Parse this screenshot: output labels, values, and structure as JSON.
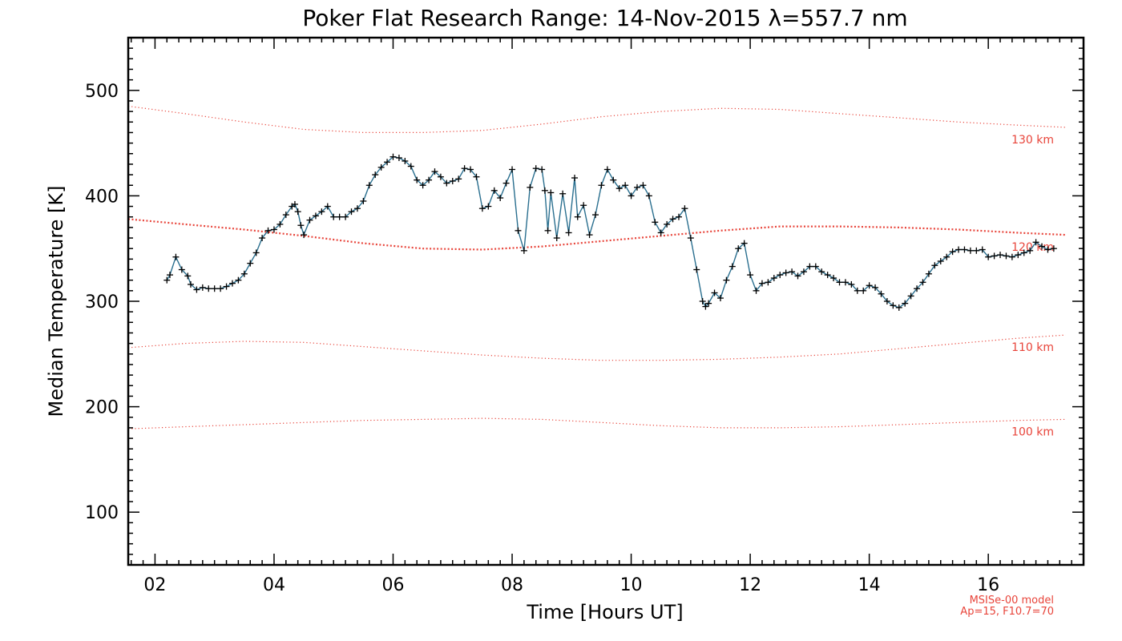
{
  "chart_data": {
    "type": "line",
    "title": "Poker Flat Research Range: 14-Nov-2015 λ=557.7 nm",
    "xlabel": "Time [Hours UT]",
    "ylabel": "Median Temperature [K]",
    "xlim": [
      1.55,
      17.6
    ],
    "ylim": [
      50,
      550
    ],
    "x_ticks": [
      2,
      4,
      6,
      8,
      10,
      12,
      14,
      16
    ],
    "x_tick_labels": [
      "02",
      "04",
      "06",
      "08",
      "10",
      "12",
      "14",
      "16"
    ],
    "y_ticks": [
      100,
      200,
      300,
      400,
      500
    ],
    "y_tick_labels": [
      "100",
      "200",
      "300",
      "400",
      "500"
    ],
    "grid": false,
    "series": [
      {
        "color": "#1f3f5f",
        "marker": "plus",
        "points": [
          [
            2.2,
            320
          ],
          [
            2.25,
            325
          ],
          [
            2.35,
            342
          ],
          [
            2.45,
            330
          ],
          [
            2.55,
            324
          ],
          [
            2.6,
            316
          ],
          [
            2.7,
            311
          ],
          [
            2.8,
            313
          ],
          [
            2.9,
            312
          ],
          [
            3.0,
            312
          ],
          [
            3.1,
            312
          ],
          [
            3.2,
            314
          ],
          [
            3.3,
            317
          ],
          [
            3.4,
            320
          ],
          [
            3.5,
            326
          ],
          [
            3.6,
            336
          ],
          [
            3.7,
            346
          ],
          [
            3.8,
            360
          ],
          [
            3.9,
            367
          ],
          [
            4.0,
            368
          ],
          [
            4.1,
            373
          ],
          [
            4.2,
            382
          ],
          [
            4.3,
            390
          ],
          [
            4.35,
            392
          ],
          [
            4.4,
            385
          ],
          [
            4.45,
            372
          ],
          [
            4.5,
            363
          ],
          [
            4.6,
            377
          ],
          [
            4.7,
            381
          ],
          [
            4.8,
            385
          ],
          [
            4.9,
            390
          ],
          [
            5.0,
            380
          ],
          [
            5.1,
            380
          ],
          [
            5.2,
            380
          ],
          [
            5.3,
            385
          ],
          [
            5.4,
            388
          ],
          [
            5.5,
            395
          ],
          [
            5.6,
            410
          ],
          [
            5.7,
            420
          ],
          [
            5.8,
            427
          ],
          [
            5.9,
            432
          ],
          [
            6.0,
            437
          ],
          [
            6.1,
            436
          ],
          [
            6.2,
            433
          ],
          [
            6.3,
            428
          ],
          [
            6.4,
            415
          ],
          [
            6.5,
            410
          ],
          [
            6.6,
            415
          ],
          [
            6.7,
            423
          ],
          [
            6.8,
            418
          ],
          [
            6.9,
            412
          ],
          [
            7.0,
            414
          ],
          [
            7.1,
            416
          ],
          [
            7.2,
            426
          ],
          [
            7.3,
            425
          ],
          [
            7.4,
            418
          ],
          [
            7.5,
            388
          ],
          [
            7.6,
            390
          ],
          [
            7.7,
            405
          ],
          [
            7.8,
            398
          ],
          [
            7.9,
            412
          ],
          [
            8.0,
            425
          ],
          [
            8.1,
            367
          ],
          [
            8.2,
            348
          ],
          [
            8.3,
            408
          ],
          [
            8.4,
            426
          ],
          [
            8.5,
            425
          ],
          [
            8.55,
            405
          ],
          [
            8.6,
            367
          ],
          [
            8.65,
            403
          ],
          [
            8.75,
            360
          ],
          [
            8.85,
            402
          ],
          [
            8.95,
            365
          ],
          [
            9.05,
            417
          ],
          [
            9.1,
            380
          ],
          [
            9.2,
            391
          ],
          [
            9.3,
            363
          ],
          [
            9.4,
            382
          ],
          [
            9.5,
            410
          ],
          [
            9.6,
            425
          ],
          [
            9.7,
            415
          ],
          [
            9.8,
            407
          ],
          [
            9.9,
            410
          ],
          [
            10.0,
            400
          ],
          [
            10.1,
            408
          ],
          [
            10.2,
            410
          ],
          [
            10.3,
            400
          ],
          [
            10.4,
            375
          ],
          [
            10.5,
            365
          ],
          [
            10.6,
            373
          ],
          [
            10.7,
            378
          ],
          [
            10.8,
            380
          ],
          [
            10.9,
            388
          ],
          [
            11.0,
            360
          ],
          [
            11.1,
            330
          ],
          [
            11.2,
            300
          ],
          [
            11.25,
            295
          ],
          [
            11.3,
            298
          ],
          [
            11.4,
            308
          ],
          [
            11.5,
            303
          ],
          [
            11.6,
            320
          ],
          [
            11.7,
            333
          ],
          [
            11.8,
            350
          ],
          [
            11.9,
            355
          ],
          [
            12.0,
            325
          ],
          [
            12.1,
            310
          ],
          [
            12.2,
            317
          ],
          [
            12.3,
            318
          ],
          [
            12.4,
            322
          ],
          [
            12.5,
            325
          ],
          [
            12.6,
            327
          ],
          [
            12.7,
            328
          ],
          [
            12.8,
            324
          ],
          [
            12.9,
            328
          ],
          [
            13.0,
            333
          ],
          [
            13.1,
            333
          ],
          [
            13.2,
            328
          ],
          [
            13.3,
            325
          ],
          [
            13.4,
            322
          ],
          [
            13.5,
            318
          ],
          [
            13.6,
            318
          ],
          [
            13.7,
            316
          ],
          [
            13.8,
            310
          ],
          [
            13.9,
            310
          ],
          [
            14.0,
            315
          ],
          [
            14.1,
            313
          ],
          [
            14.2,
            307
          ],
          [
            14.3,
            300
          ],
          [
            14.4,
            296
          ],
          [
            14.5,
            294
          ],
          [
            14.6,
            298
          ],
          [
            14.7,
            305
          ],
          [
            14.8,
            312
          ],
          [
            14.9,
            318
          ],
          [
            15.0,
            326
          ],
          [
            15.1,
            334
          ],
          [
            15.2,
            338
          ],
          [
            15.3,
            342
          ],
          [
            15.4,
            347
          ],
          [
            15.5,
            349
          ],
          [
            15.6,
            349
          ],
          [
            15.7,
            348
          ],
          [
            15.8,
            348
          ],
          [
            15.9,
            349
          ],
          [
            16.0,
            342
          ],
          [
            16.1,
            343
          ],
          [
            16.2,
            344
          ],
          [
            16.3,
            343
          ],
          [
            16.4,
            342
          ],
          [
            16.5,
            344
          ],
          [
            16.6,
            346
          ],
          [
            16.7,
            348
          ],
          [
            16.8,
            356
          ],
          [
            16.9,
            352
          ],
          [
            17.0,
            349
          ],
          [
            17.1,
            350
          ]
        ]
      }
    ],
    "model_curves": [
      {
        "label": "130 km",
        "color": "#e8443a",
        "style": "dotted",
        "points": [
          [
            1.55,
            485
          ],
          [
            2.5,
            478
          ],
          [
            3.5,
            470
          ],
          [
            4.5,
            463
          ],
          [
            5.5,
            460
          ],
          [
            6.5,
            460
          ],
          [
            7.5,
            462
          ],
          [
            8.5,
            468
          ],
          [
            9.5,
            475
          ],
          [
            10.5,
            480
          ],
          [
            11.5,
            483
          ],
          [
            12.5,
            482
          ],
          [
            13.5,
            478
          ],
          [
            14.5,
            474
          ],
          [
            15.5,
            470
          ],
          [
            16.5,
            467
          ],
          [
            17.3,
            465
          ]
        ]
      },
      {
        "label": "120 km",
        "color": "#e8443a",
        "style": "dotted-heavy",
        "points": [
          [
            1.55,
            378
          ],
          [
            2.5,
            373
          ],
          [
            3.5,
            368
          ],
          [
            4.5,
            362
          ],
          [
            5.5,
            355
          ],
          [
            6.5,
            350
          ],
          [
            7.5,
            349
          ],
          [
            8.5,
            352
          ],
          [
            9.5,
            357
          ],
          [
            10.5,
            362
          ],
          [
            11.5,
            367
          ],
          [
            12.5,
            371
          ],
          [
            13.5,
            371
          ],
          [
            14.5,
            370
          ],
          [
            15.5,
            368
          ],
          [
            16.5,
            365
          ],
          [
            17.3,
            363
          ]
        ]
      },
      {
        "label": "110 km",
        "color": "#e8443a",
        "style": "dotted",
        "points": [
          [
            1.55,
            256
          ],
          [
            2.5,
            260
          ],
          [
            3.5,
            262
          ],
          [
            4.5,
            261
          ],
          [
            5.5,
            257
          ],
          [
            6.5,
            253
          ],
          [
            7.5,
            249
          ],
          [
            8.5,
            246
          ],
          [
            9.5,
            244
          ],
          [
            10.5,
            244
          ],
          [
            11.5,
            245
          ],
          [
            12.5,
            247
          ],
          [
            13.5,
            250
          ],
          [
            14.5,
            255
          ],
          [
            15.5,
            260
          ],
          [
            16.5,
            265
          ],
          [
            17.3,
            268
          ]
        ]
      },
      {
        "label": "100 km",
        "color": "#e8443a",
        "style": "dotted",
        "points": [
          [
            1.55,
            179
          ],
          [
            2.5,
            181
          ],
          [
            3.5,
            183
          ],
          [
            4.5,
            185
          ],
          [
            5.5,
            187
          ],
          [
            6.5,
            188
          ],
          [
            7.5,
            189
          ],
          [
            8.5,
            188
          ],
          [
            9.5,
            185
          ],
          [
            10.5,
            182
          ],
          [
            11.5,
            180
          ],
          [
            12.5,
            180
          ],
          [
            13.5,
            181
          ],
          [
            14.5,
            183
          ],
          [
            15.5,
            185
          ],
          [
            16.5,
            187
          ],
          [
            17.3,
            188
          ]
        ]
      }
    ],
    "annotations": {
      "model_name": "MSISe-00 model",
      "model_params": "Ap=15, F10.7=70"
    }
  }
}
